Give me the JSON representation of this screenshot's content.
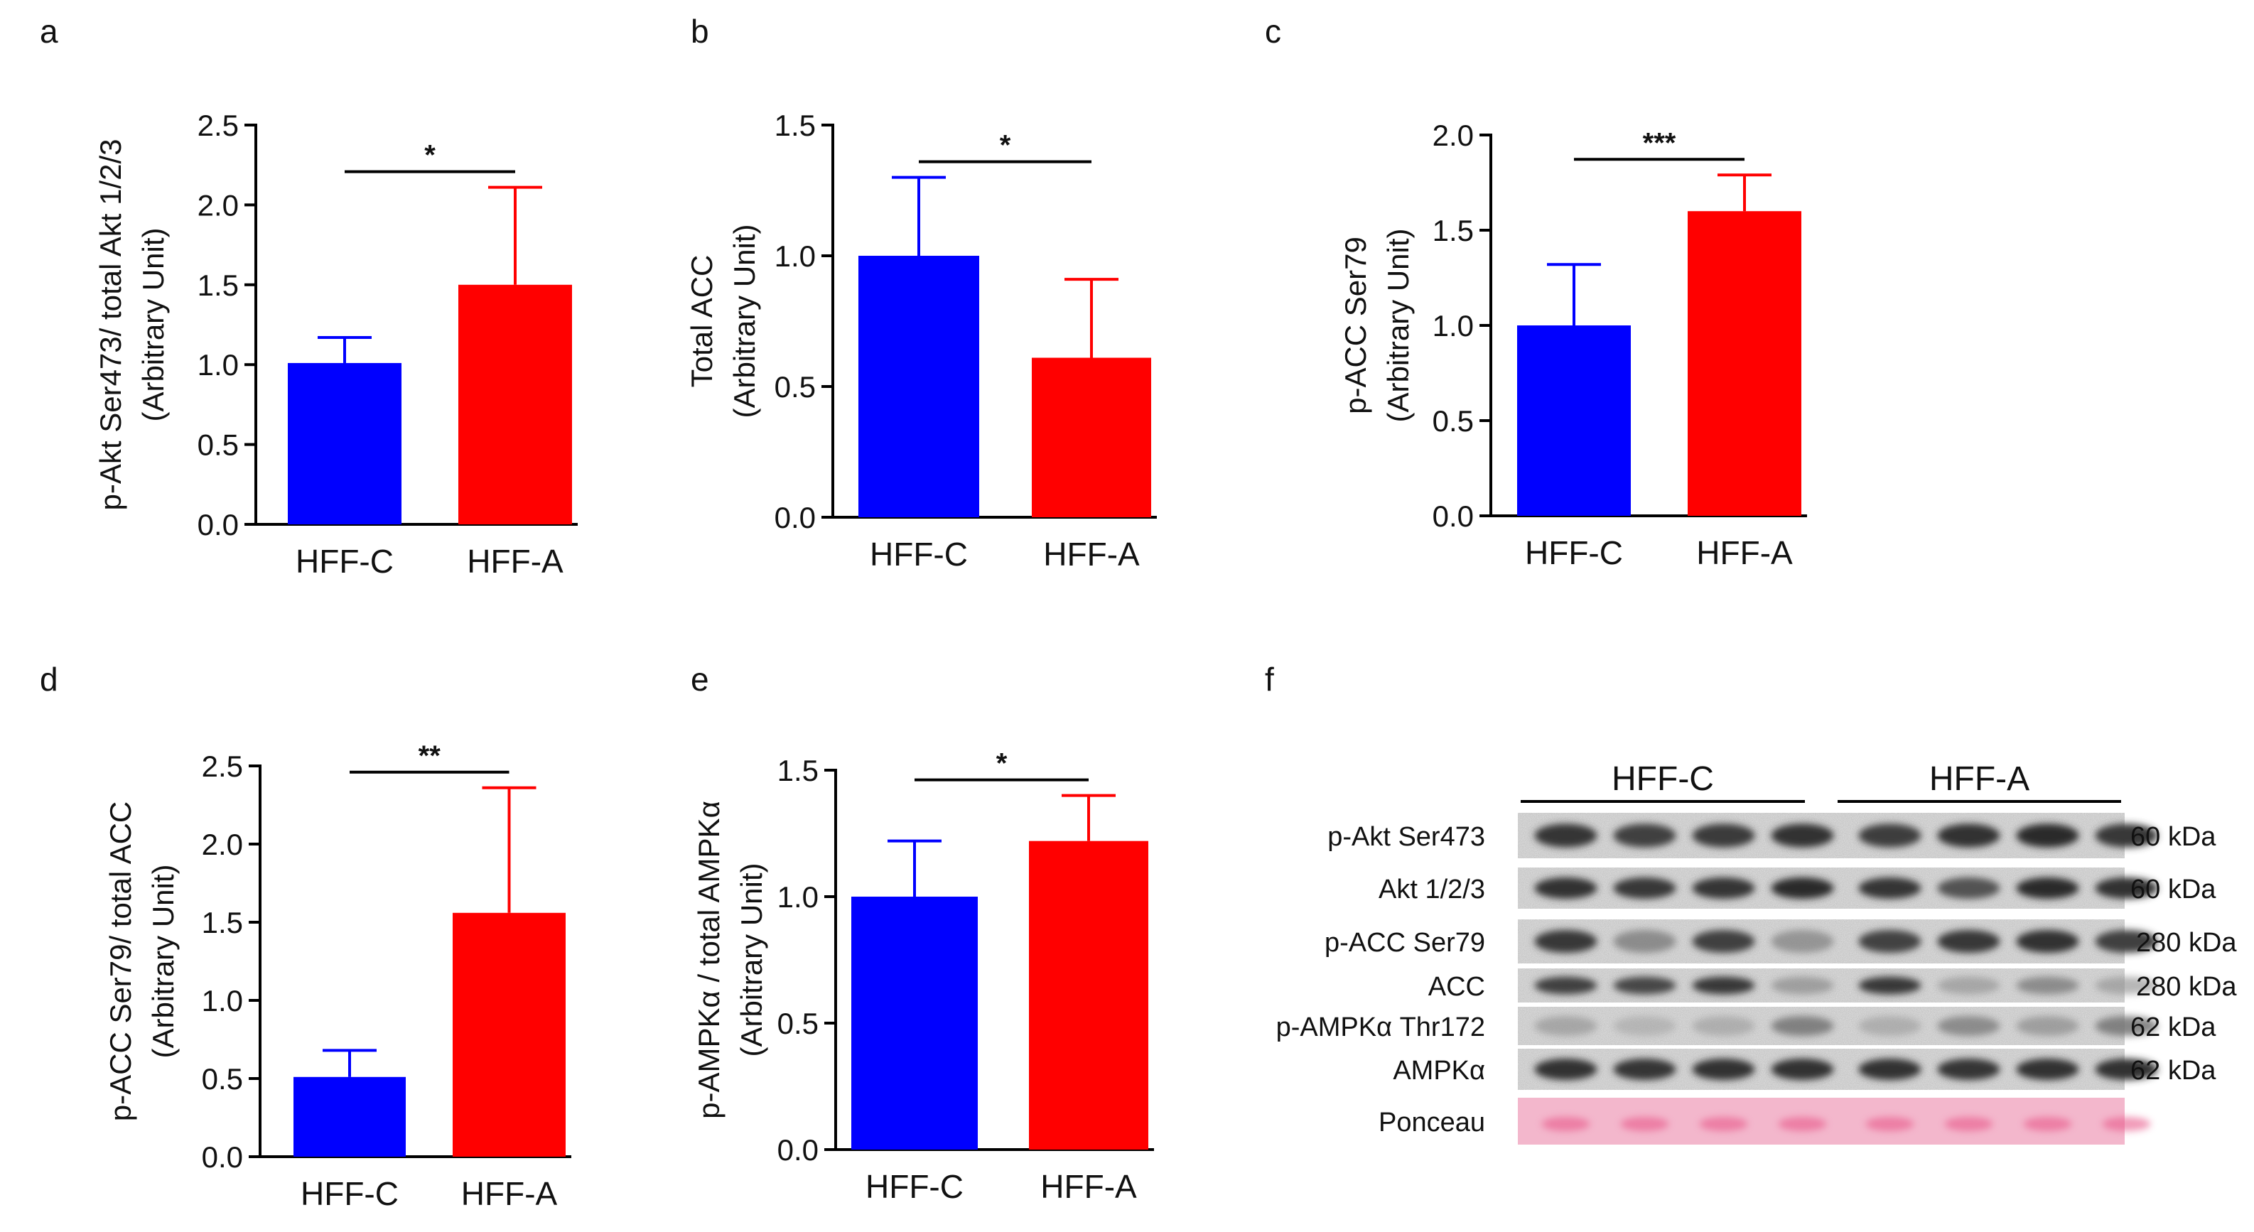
{
  "panels": {
    "a": {
      "letter": "a"
    },
    "b": {
      "letter": "b"
    },
    "c": {
      "letter": "c"
    },
    "d": {
      "letter": "d"
    },
    "e": {
      "letter": "e"
    },
    "f": {
      "letter": "f"
    }
  },
  "chart_data": [
    {
      "id": "a",
      "type": "bar",
      "categories": [
        "HFF-C",
        "HFF-A"
      ],
      "values": [
        1.01,
        1.5
      ],
      "errors": [
        0.16,
        0.61
      ],
      "colors": [
        "#0000ff",
        "#ff0000"
      ],
      "ylabel_lines": [
        "p-Akt Ser473/ total Akt 1/2/3",
        "(Arbitrary Unit)"
      ],
      "ylim": [
        0,
        2.5
      ],
      "ticks": [
        "0.0",
        "0.5",
        "1.0",
        "1.5",
        "2.0",
        "2.5"
      ],
      "significance": "*"
    },
    {
      "id": "b",
      "type": "bar",
      "categories": [
        "HFF-C",
        "HFF-A"
      ],
      "values": [
        1.0,
        0.61
      ],
      "errors": [
        0.3,
        0.3
      ],
      "colors": [
        "#0000ff",
        "#ff0000"
      ],
      "ylabel_lines": [
        "Total ACC",
        "(Arbitrary Unit)"
      ],
      "ylim": [
        0,
        1.5
      ],
      "ticks": [
        "0.0",
        "0.5",
        "1.0",
        "1.5"
      ],
      "significance": "*"
    },
    {
      "id": "c",
      "type": "bar",
      "categories": [
        "HFF-C",
        "HFF-A"
      ],
      "values": [
        1.0,
        1.6
      ],
      "errors": [
        0.32,
        0.19
      ],
      "colors": [
        "#0000ff",
        "#ff0000"
      ],
      "ylabel_lines": [
        "p-ACC Ser79",
        "(Arbitrary Unit)"
      ],
      "ylim": [
        0,
        2.0
      ],
      "ticks": [
        "0.0",
        "0.5",
        "1.0",
        "1.5",
        "2.0"
      ],
      "significance": "***"
    },
    {
      "id": "d",
      "type": "bar",
      "categories": [
        "HFF-C",
        "HFF-A"
      ],
      "values": [
        0.51,
        1.56
      ],
      "errors": [
        0.17,
        0.8
      ],
      "colors": [
        "#0000ff",
        "#ff0000"
      ],
      "ylabel_lines": [
        "p-ACC Ser79/ total ACC",
        "(Arbitrary Unit)"
      ],
      "ylim": [
        0,
        2.5
      ],
      "ticks": [
        "0.0",
        "0.5",
        "1.0",
        "1.5",
        "2.0",
        "2.5"
      ],
      "significance": "**"
    },
    {
      "id": "e",
      "type": "bar",
      "categories": [
        "HFF-C",
        "HFF-A"
      ],
      "values": [
        1.0,
        1.22
      ],
      "errors": [
        0.22,
        0.18
      ],
      "colors": [
        "#0000ff",
        "#ff0000"
      ],
      "ylabel_lines": [
        "p-AMPKα / total AMPKα",
        "(Arbitrary Unit)"
      ],
      "ylim": [
        0,
        1.5
      ],
      "ticks": [
        "0.0",
        "0.5",
        "1.0",
        "1.5"
      ],
      "significance": "*"
    }
  ],
  "blot": {
    "groups": [
      "HFF-C",
      "HFF-A"
    ],
    "rows": [
      {
        "label": "p-Akt Ser473",
        "kda": "60 kDa",
        "kind": "band",
        "intensity": [
          0.92,
          0.85,
          0.88,
          0.93,
          0.87,
          0.95,
          0.98,
          0.9
        ]
      },
      {
        "label": "Akt 1/2/3",
        "kda": "60 kDa",
        "kind": "band",
        "intensity": [
          0.95,
          0.9,
          0.92,
          0.98,
          0.92,
          0.72,
          0.98,
          0.93
        ]
      },
      {
        "label": "p-ACC Ser79",
        "kda": "280 kDa",
        "kind": "band",
        "intensity": [
          0.9,
          0.45,
          0.85,
          0.4,
          0.82,
          0.9,
          0.95,
          0.85
        ]
      },
      {
        "label": "ACC",
        "kda": "280 kDa",
        "kind": "band",
        "intensity": [
          0.85,
          0.8,
          0.9,
          0.35,
          0.9,
          0.3,
          0.45,
          0.3
        ]
      },
      {
        "label": "p-AMPKα Thr172",
        "kda": "62 kDa",
        "kind": "band",
        "intensity": [
          0.3,
          0.2,
          0.25,
          0.5,
          0.25,
          0.45,
          0.35,
          0.5
        ]
      },
      {
        "label": "AMPKα",
        "kda": "62 kDa",
        "kind": "band",
        "intensity": [
          0.95,
          0.92,
          0.94,
          0.93,
          0.94,
          0.92,
          0.95,
          0.93
        ]
      },
      {
        "label": "Ponceau",
        "kda": "",
        "kind": "ponceau",
        "intensity": [
          0.6,
          0.6,
          0.6,
          0.6,
          0.6,
          0.6,
          0.6,
          0.6
        ]
      }
    ]
  }
}
